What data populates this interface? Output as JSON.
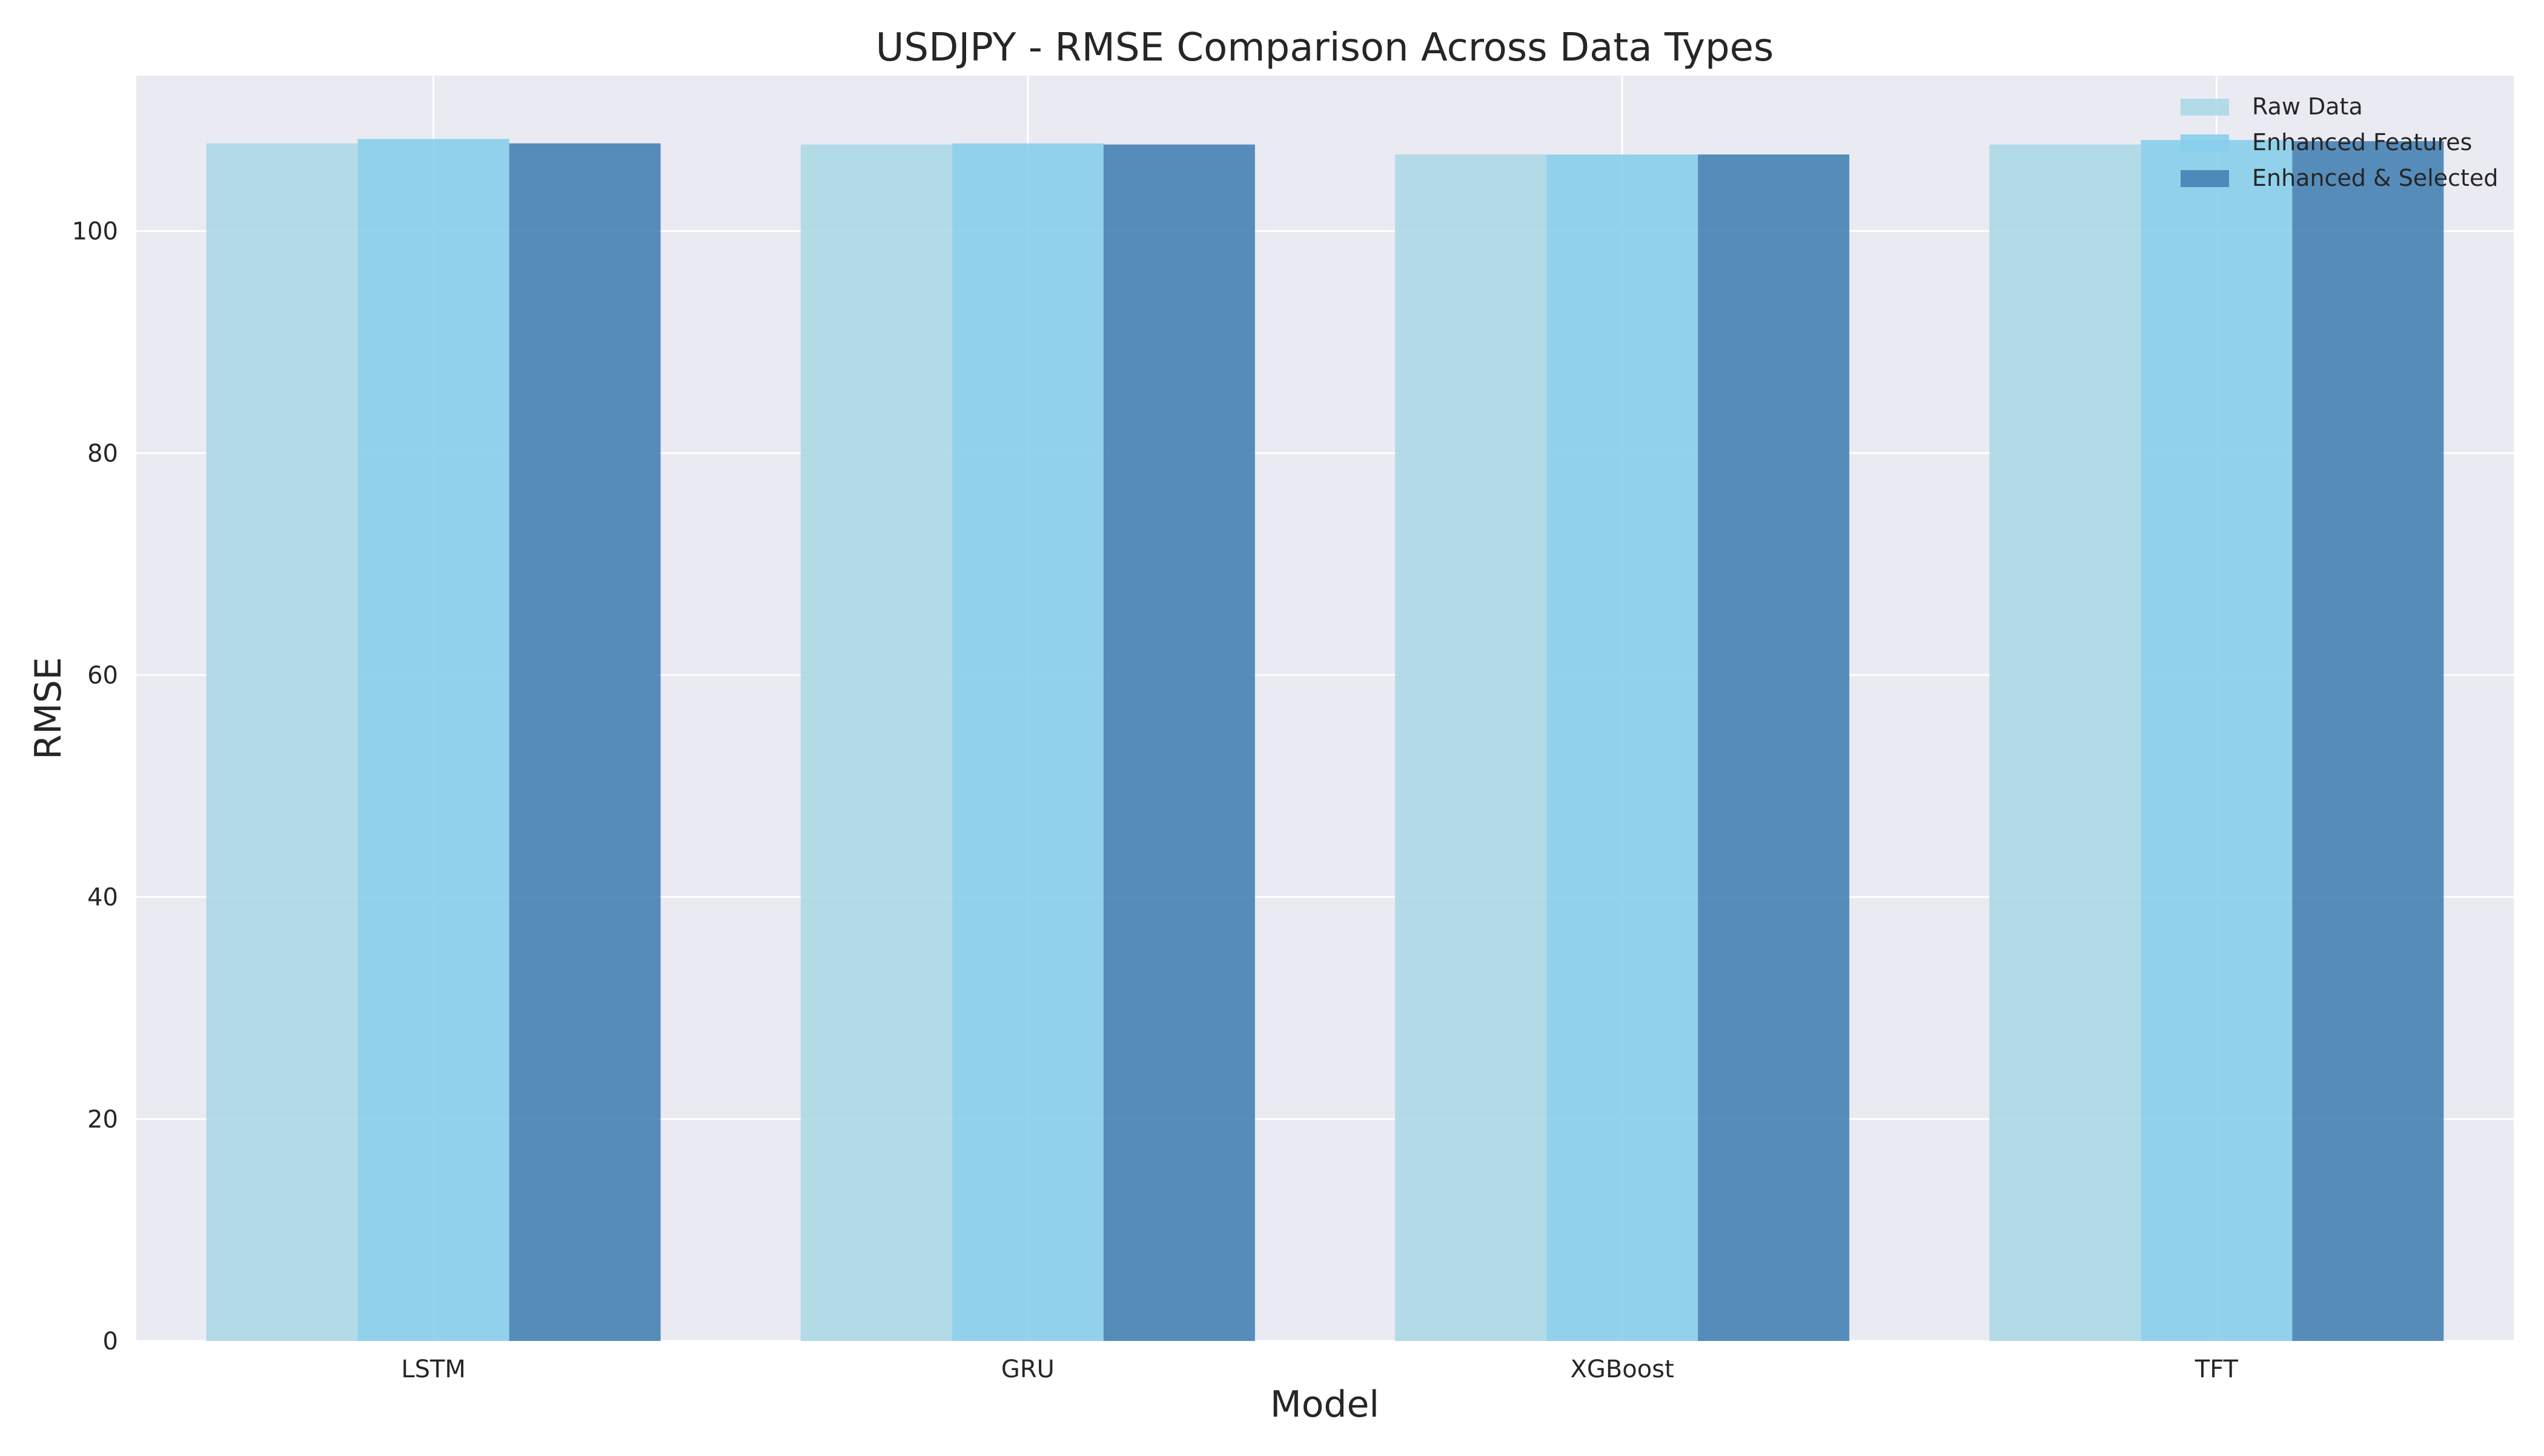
{
  "chart_data": {
    "type": "bar",
    "title": "USDJPY - RMSE Comparison Across Data Types",
    "xlabel": "Model",
    "ylabel": "RMSE",
    "categories": [
      "LSTM",
      "GRU",
      "XGBoost",
      "TFT"
    ],
    "series": [
      {
        "name": "Raw Data",
        "color": "#add8e6",
        "values": [
          107.9,
          107.8,
          106.9,
          107.8
        ]
      },
      {
        "name": "Enhanced Features",
        "color": "#87ceeb",
        "values": [
          108.3,
          107.9,
          106.9,
          108.2
        ]
      },
      {
        "name": "Enhanced & Selected",
        "color": "#4682b4",
        "values": [
          107.9,
          107.8,
          106.9,
          108.1
        ]
      }
    ],
    "ylim": [
      0,
      114
    ],
    "yticks": [
      "0",
      "20",
      "40",
      "60",
      "80",
      "100"
    ],
    "grid": true,
    "legend_position": "top-right",
    "plot_background": "#eaeaf2"
  }
}
